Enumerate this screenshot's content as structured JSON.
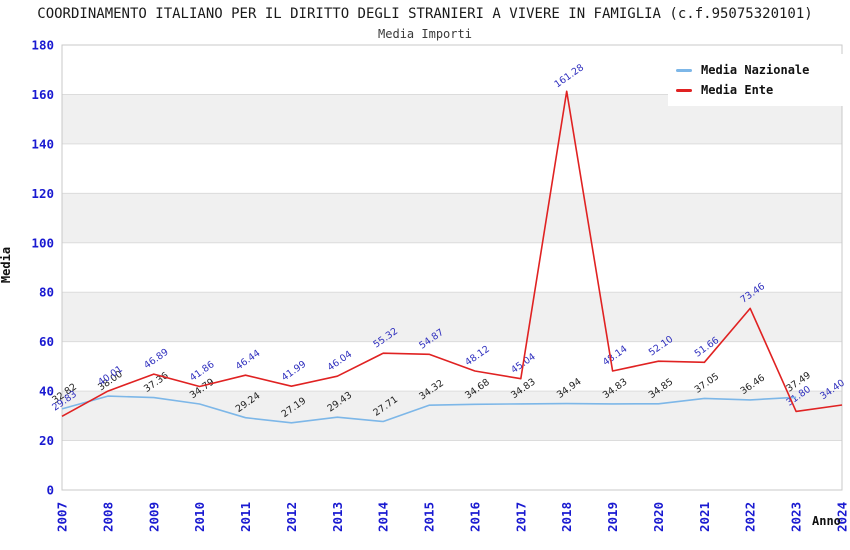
{
  "header": {
    "title": "COORDINAMENTO ITALIANO PER IL DIRITTO DEGLI STRANIERI A VIVERE IN FAMIGLIA (c.f.95075320101)",
    "subtitle": "Media Importi"
  },
  "axes": {
    "y_title": "Media",
    "x_title": "Anno",
    "y_ticks": [
      0,
      20,
      40,
      60,
      80,
      100,
      120,
      140,
      160,
      180
    ]
  },
  "legend": {
    "items": [
      {
        "label": "Media Nazionale",
        "color": "#7db7e8"
      },
      {
        "label": "Media Ente",
        "color": "#e02222"
      }
    ]
  },
  "colors": {
    "axis_tick_text": "#1a1ad1",
    "band": "#f0f0f0",
    "grid": "#dcdcdc",
    "frame": "#c9c9c9"
  },
  "chart_data": {
    "type": "line",
    "title": "COORDINAMENTO ITALIANO PER IL DIRITTO DEGLI STRANIERI A VIVERE IN FAMIGLIA (c.f.95075320101)",
    "subtitle": "Media Importi",
    "xlabel": "Anno",
    "ylabel": "Media",
    "ylim": [
      0,
      180
    ],
    "grid": true,
    "banded_background": true,
    "legend_position": "top-right",
    "x": [
      "2007",
      "2008",
      "2009",
      "2010",
      "2011",
      "2012",
      "2013",
      "2014",
      "2015",
      "2016",
      "2017",
      "2018",
      "2019",
      "2020",
      "2021",
      "2022",
      "2023",
      "2024"
    ],
    "series": [
      {
        "name": "Media Nazionale",
        "color": "#7db7e8",
        "label_color": "#222222",
        "values": [
          32.82,
          38.0,
          37.36,
          34.79,
          29.24,
          27.19,
          29.43,
          27.71,
          34.32,
          34.68,
          34.83,
          34.94,
          34.83,
          34.85,
          37.05,
          36.46,
          37.49,
          null
        ],
        "labels": [
          "32.82",
          "38.00",
          "37.36",
          "34.79",
          "29.24",
          "27.19",
          "29.43",
          "27.71",
          "34.32",
          "34.68",
          "34.83",
          "34.94",
          "34.83",
          "34.85",
          "37.05",
          "36.46",
          "37.49",
          null
        ]
      },
      {
        "name": "Media Ente",
        "color": "#e02222",
        "label_color": "#2f2fbe",
        "values": [
          29.83,
          40.01,
          46.89,
          41.86,
          46.44,
          41.99,
          46.04,
          55.32,
          54.87,
          48.12,
          45.04,
          161.28,
          48.14,
          52.1,
          51.66,
          73.46,
          31.8,
          34.4
        ],
        "labels": [
          "29.83",
          "40.01",
          "46.89",
          "41.86",
          "46.44",
          "41.99",
          "46.04",
          "55.32",
          "54.87",
          "48.12",
          "45.04",
          "161.28",
          "48.14",
          "52.10",
          "51.66",
          "73.46",
          "31.80",
          "34.40"
        ]
      }
    ]
  }
}
